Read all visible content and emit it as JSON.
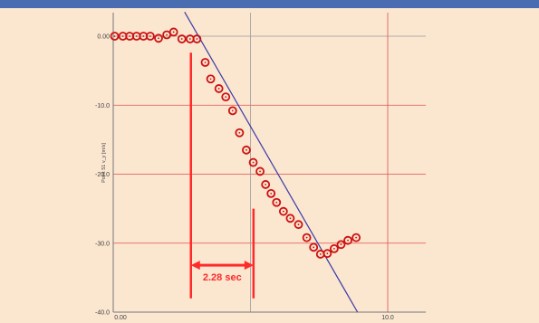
{
  "colors": {
    "background": "#fbe6d0",
    "top_bar": "#4a6cb0",
    "grid_gray": "#9a9a9a",
    "grid_red": "#e05050",
    "points": "#cc1111",
    "fit_line": "#3a3aa8",
    "annotation": "#ff2a2a"
  },
  "chart_data": {
    "type": "scatter",
    "title": "",
    "xlabel": "",
    "ylabel": "Point 51 v_y [m/s]",
    "xlim": [
      0,
      10.0
    ],
    "ylim": [
      -40.0,
      0
    ],
    "x_ticks": [
      {
        "value": 0,
        "label": "0.00"
      },
      {
        "value": 10,
        "label": "10.0"
      }
    ],
    "y_ticks": [
      {
        "value": 0,
        "label": "0.00"
      },
      {
        "value": -10,
        "label": "-10.0"
      },
      {
        "value": -20,
        "label": "-20.0"
      },
      {
        "value": -30,
        "label": "-30.0"
      },
      {
        "value": -40,
        "label": "-40.0"
      }
    ],
    "grid": true,
    "series": [
      {
        "marker": "circle-dot",
        "points": [
          [
            0.05,
            0.0
          ],
          [
            0.35,
            0.0
          ],
          [
            0.6,
            0.0
          ],
          [
            0.85,
            0.0
          ],
          [
            1.1,
            0.0
          ],
          [
            1.35,
            0.0
          ],
          [
            1.65,
            -0.3
          ],
          [
            1.95,
            0.2
          ],
          [
            2.2,
            0.6
          ],
          [
            2.5,
            -0.4
          ],
          [
            2.8,
            -0.4
          ],
          [
            3.05,
            -0.4
          ],
          [
            3.35,
            -3.8
          ],
          [
            3.55,
            -6.2
          ],
          [
            3.85,
            -7.6
          ],
          [
            4.1,
            -8.8
          ],
          [
            4.35,
            -10.8
          ],
          [
            4.6,
            -14.0
          ],
          [
            4.85,
            -16.5
          ],
          [
            5.1,
            -18.3
          ],
          [
            5.35,
            -19.6
          ],
          [
            5.55,
            -21.5
          ],
          [
            5.75,
            -22.8
          ],
          [
            5.95,
            -24.1
          ],
          [
            6.2,
            -25.4
          ],
          [
            6.45,
            -26.4
          ],
          [
            6.75,
            -27.3
          ],
          [
            7.05,
            -29.2
          ],
          [
            7.3,
            -30.6
          ],
          [
            7.55,
            -31.6
          ],
          [
            7.8,
            -31.5
          ],
          [
            8.05,
            -30.8
          ],
          [
            8.3,
            -30.2
          ],
          [
            8.55,
            -29.6
          ],
          [
            8.85,
            -29.2
          ]
        ]
      }
    ],
    "fit_line": {
      "start": [
        2.6,
        3.5
      ],
      "end": [
        8.9,
        -40.0
      ]
    },
    "annotation": {
      "label": "2.28 sec",
      "start_x": 2.83,
      "end_x": 5.11,
      "y": -33.2,
      "start_marker_y": [
        -2.4,
        -38.0
      ],
      "end_marker_y": [
        -25.0,
        -38.0
      ]
    }
  }
}
